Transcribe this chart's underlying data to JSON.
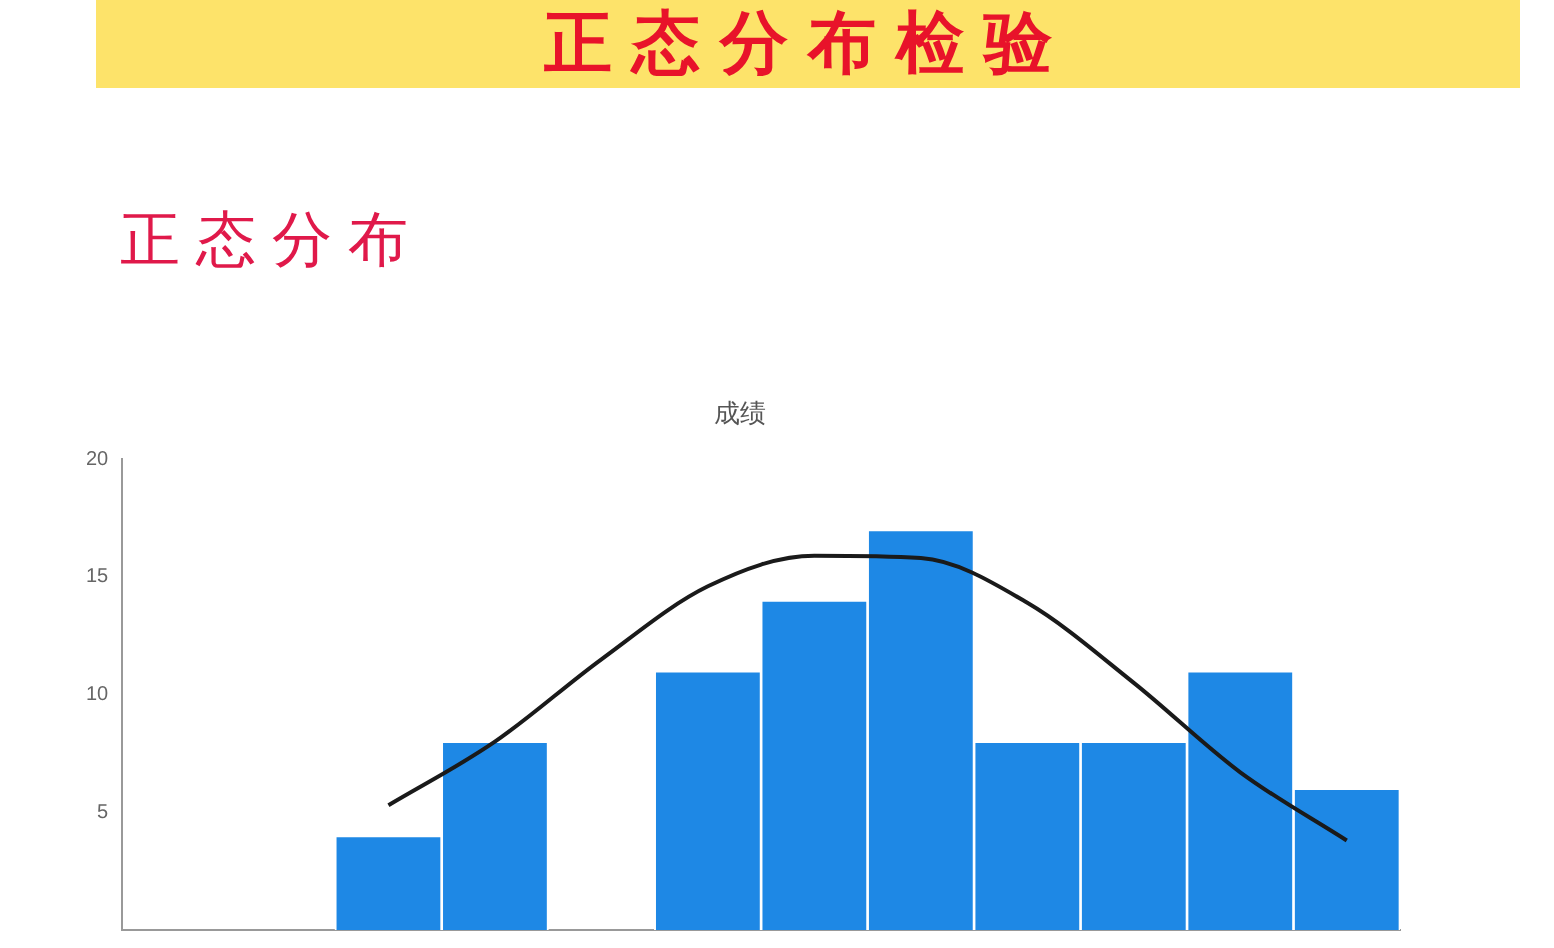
{
  "chart_data": {
    "type": "bar",
    "title": "成绩",
    "annotations": [
      "正态分布检验",
      "正态分布"
    ],
    "categories": [
      null,
      null,
      null,
      null,
      null,
      null,
      null,
      null,
      null,
      null,
      null,
      null
    ],
    "series": [
      {
        "color": "#1e88e5",
        "values": [
          null,
          null,
          4,
          8,
          0,
          11,
          14,
          17,
          8,
          8,
          11,
          6
        ]
      },
      {
        "type": "line",
        "color": "#1a1a1a",
        "values": [
          null,
          null,
          5.3,
          8.0,
          11.5,
          14.6,
          15.9,
          15.8,
          13.9,
          10.5,
          6.7,
          3.8
        ]
      }
    ],
    "ylim": [
      0,
      20
    ],
    "yticks": [
      5,
      10,
      15,
      20
    ],
    "grid": false,
    "legend": false,
    "tick_labels": "y",
    "marker": "none",
    "line_style": "solid"
  }
}
